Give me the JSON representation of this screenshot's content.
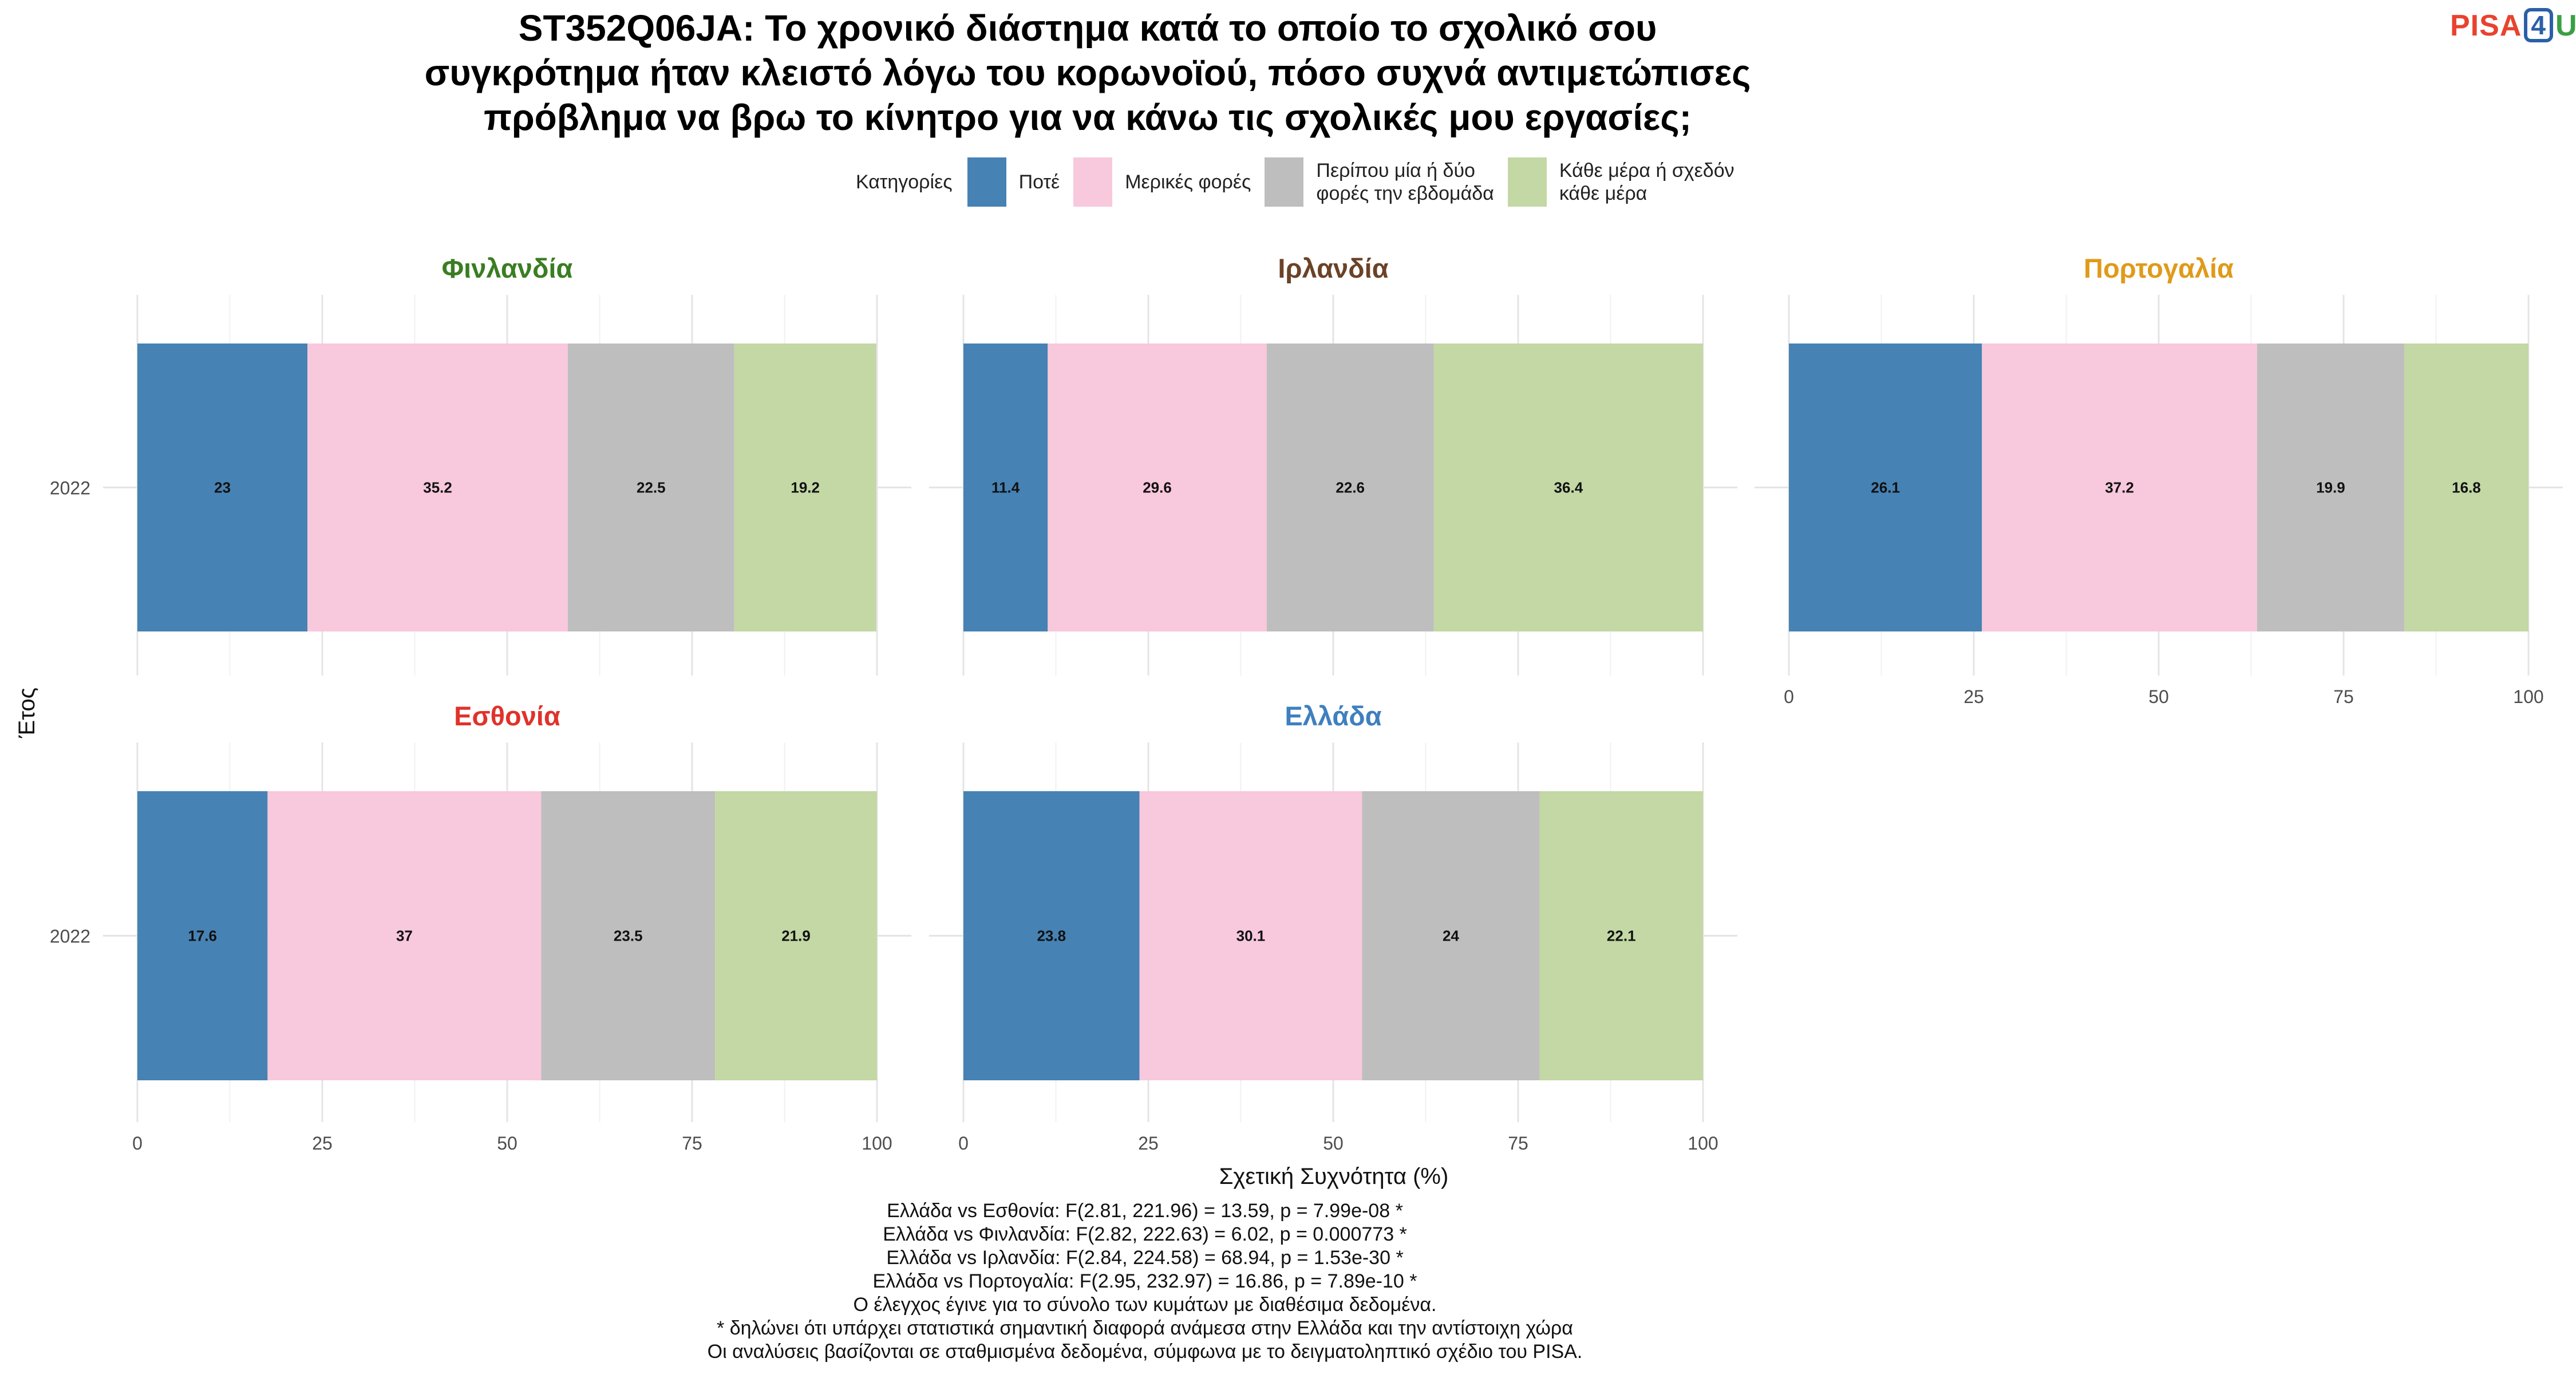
{
  "title_lines": [
    "ST352Q06JA: Το χρονικό διάστημα κατά το οποίο το σχολικό σου",
    "συγκρότημα ήταν κλειστό λόγω του κορωνοϊού, πόσο συχνά αντιμετώπισες",
    "πρόβλημα να βρω το κίνητρο για να κάνω τις σχολικές μου εργασίες;"
  ],
  "logo": {
    "part1": "PISA",
    "part2": "4",
    "part3": "U"
  },
  "footer_lines": [
    "Ελλάδα vs Εσθονία: F(2.81, 221.96) = 13.59, p = 7.99e-08 *",
    "Ελλάδα vs Φινλανδία: F(2.82, 222.63) = 6.02, p = 0.000773 *",
    "Ελλάδα vs Ιρλανδία: F(2.84, 224.58) = 68.94, p = 1.53e-30 *",
    "Ελλάδα vs Πορτογαλία: F(2.95, 232.97) = 16.86, p = 7.89e-10 *",
    "Ο έλεγχος έγινε για το σύνολο των κυμάτων με διαθέσιμα δεδομένα.",
    "* δηλώνει ότι υπάρχει στατιστικά σημαντική διαφορά ανάμεσα στην Ελλάδα και την αντίστοιχη χώρα",
    "Οι αναλύσεις βασίζονται σε σταθμισμένα δεδομένα, σύμφωνα με το δειγματοληπτικό σχέδιο του PISA."
  ],
  "chart_data": {
    "type": "bar",
    "orientation": "horizontal-stacked",
    "xlabel": "Σχετική Συχνότητα (%)",
    "ylabel": "Έτος",
    "xlim": [
      0,
      100
    ],
    "xticks": [
      0,
      25,
      50,
      75,
      100
    ],
    "grid": true,
    "legend": {
      "title": "Κατηγορίες",
      "placement": "top",
      "entries": [
        {
          "label": "Ποτέ",
          "color": "#4682b4"
        },
        {
          "label": "Μερικές φορές",
          "color": "#f8c8dc"
        },
        {
          "label": "Περίπου μία ή δύο\nφορές την εβδομάδα",
          "color": "#bebebe"
        },
        {
          "label": "Κάθε μέρα ή σχεδόν\nκάθε μέρα",
          "color": "#c3d8a5"
        }
      ]
    },
    "panels": [
      {
        "title": "Φινλανδία",
        "title_color": "#3a7d22",
        "year": "2022",
        "values": [
          23,
          35.2,
          22.5,
          19.2
        ],
        "labels": [
          "23",
          "35.2",
          "22.5",
          "19.2"
        ]
      },
      {
        "title": "Ιρλανδία",
        "title_color": "#6b4226",
        "year": "2022",
        "values": [
          11.4,
          29.6,
          22.6,
          36.4
        ],
        "labels": [
          "11.4",
          "29.6",
          "22.6",
          "36.4"
        ]
      },
      {
        "title": "Πορτογαλία",
        "title_color": "#e09a1a",
        "year": "2022",
        "values": [
          26.1,
          37.2,
          19.9,
          16.8
        ],
        "labels": [
          "26.1",
          "37.2",
          "19.9",
          "16.8"
        ]
      },
      {
        "title": "Εσθονία",
        "title_color": "#e0322a",
        "year": "2022",
        "values": [
          17.6,
          37,
          23.5,
          21.9
        ],
        "labels": [
          "17.6",
          "37",
          "23.5",
          "21.9"
        ]
      },
      {
        "title": "Ελλάδα",
        "title_color": "#3f7fbf",
        "year": "2022",
        "values": [
          23.8,
          30.1,
          24,
          22.1
        ],
        "labels": [
          "23.8",
          "30.1",
          "24",
          "22.1"
        ]
      }
    ]
  }
}
